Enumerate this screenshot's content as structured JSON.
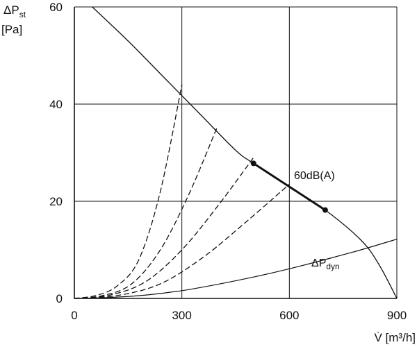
{
  "chart_data": {
    "type": "line",
    "title": "",
    "xlabel": "V̇ [m³/h]",
    "ylabel_main": "ΔP",
    "ylabel_sub": "st",
    "ylabel_unit": "[Pa]",
    "xlim": [
      0,
      900
    ],
    "ylim": [
      0,
      60
    ],
    "x_ticks": [
      0,
      300,
      600,
      900
    ],
    "y_ticks": [
      0,
      20,
      40,
      60
    ],
    "x_tick_labels": [
      "0",
      "300",
      "600",
      "900"
    ],
    "y_tick_labels": [
      "0",
      "20",
      "40",
      "60"
    ],
    "grid": true,
    "series": [
      {
        "style": "solid",
        "x": [
          50,
          150,
          250,
          350,
          450,
          500,
          600,
          700,
          800,
          850,
          900
        ],
        "y": [
          60,
          53,
          45.5,
          38,
          30.5,
          27.8,
          23,
          18.2,
          12,
          7,
          0
        ]
      },
      {
        "name_main": "ΔP",
        "name_sub": "dyn",
        "style": "solid-thin",
        "x": [
          0,
          100,
          200,
          300,
          400,
          500,
          600,
          700,
          800,
          900
        ],
        "y": [
          0,
          0.2,
          0.7,
          1.6,
          2.9,
          4.4,
          6.1,
          8.0,
          10.0,
          12.2
        ]
      },
      {
        "style": "dashed",
        "x": [
          0,
          60,
          120,
          180,
          240,
          300
        ],
        "y": [
          0,
          0.6,
          2.6,
          8.0,
          22.0,
          44.0
        ]
      },
      {
        "style": "dashed",
        "x": [
          0,
          80,
          160,
          240,
          320,
          400
        ],
        "y": [
          0,
          0.6,
          3.0,
          10.0,
          21.5,
          35.5
        ]
      },
      {
        "style": "dashed",
        "x": [
          0,
          100,
          200,
          300,
          400,
          500
        ],
        "y": [
          0,
          0.7,
          3.5,
          10.0,
          19.0,
          29.0
        ]
      },
      {
        "style": "dashed",
        "x": [
          0,
          120,
          240,
          360,
          480,
          600
        ],
        "y": [
          0,
          0.6,
          3.0,
          8.5,
          15.8,
          23.5
        ]
      }
    ],
    "highlight": {
      "label": "60dB(A)",
      "x": [
        500,
        700
      ],
      "y": [
        27.8,
        18.2
      ]
    }
  }
}
